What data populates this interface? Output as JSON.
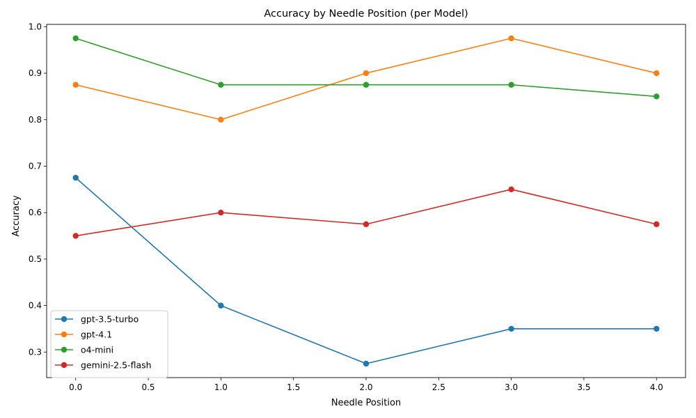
{
  "chart_data": {
    "type": "line",
    "title": "Accuracy by Needle Position (per Model)",
    "xlabel": "Needle Position",
    "ylabel": "Accuracy",
    "x": [
      0,
      1,
      2,
      3,
      4
    ],
    "xlim": [
      -0.2,
      4.2
    ],
    "ylim": [
      0.245,
      1.005
    ],
    "xticks": [
      0.0,
      0.5,
      1.0,
      1.5,
      2.0,
      2.5,
      3.0,
      3.5,
      4.0
    ],
    "xtick_labels": [
      "0.0",
      "0.5",
      "1.0",
      "1.5",
      "2.0",
      "2.5",
      "3.0",
      "3.5",
      "4.0"
    ],
    "yticks": [
      0.3,
      0.4,
      0.5,
      0.6,
      0.7,
      0.8,
      0.9,
      1.0
    ],
    "ytick_labels": [
      "0.3",
      "0.4",
      "0.5",
      "0.6",
      "0.7",
      "0.8",
      "0.9",
      "1.0"
    ],
    "grid": false,
    "legend_position": "lower-left",
    "series": [
      {
        "name": "gpt-3.5-turbo",
        "color": "#1f77b4",
        "values": [
          0.675,
          0.4,
          0.275,
          0.35,
          0.35
        ]
      },
      {
        "name": "gpt-4.1",
        "color": "#ff7f0e",
        "values": [
          0.875,
          0.8,
          0.9,
          0.975,
          0.9
        ]
      },
      {
        "name": "o4-mini",
        "color": "#2ca02c",
        "values": [
          0.975,
          0.875,
          0.875,
          0.875,
          0.85
        ]
      },
      {
        "name": "gemini-2.5-flash",
        "color": "#d62728",
        "values": [
          0.55,
          0.6,
          0.575,
          0.65,
          0.575
        ]
      }
    ]
  }
}
